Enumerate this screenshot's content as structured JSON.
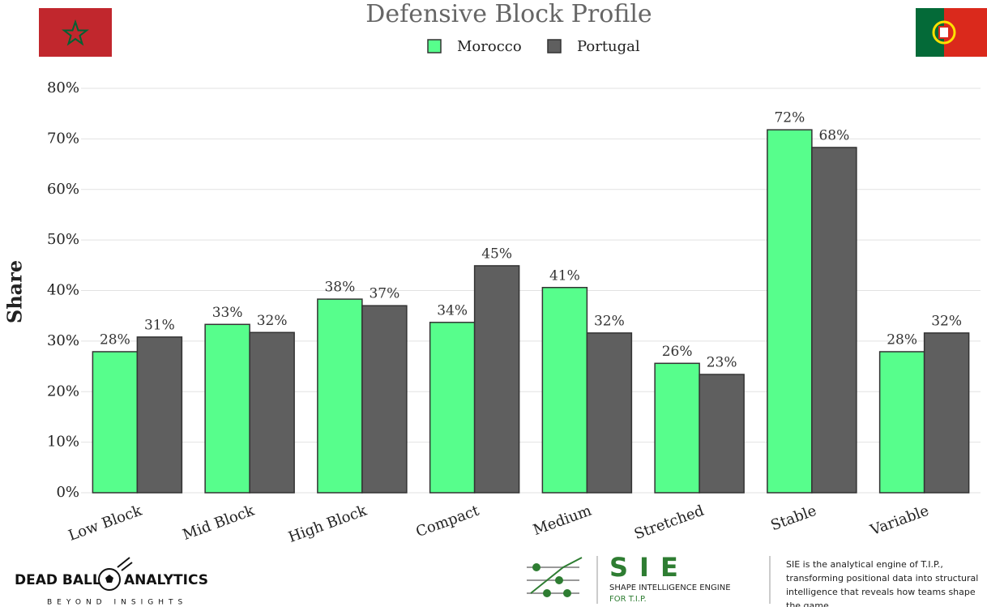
{
  "chart_data": {
    "type": "bar",
    "title": "Defensive Block Profile",
    "y_label": "Share",
    "categories": [
      "Low Block",
      "Mid Block",
      "High Block",
      "Compact",
      "Medium",
      "Stretched",
      "Stable",
      "Variable"
    ],
    "series": [
      {
        "name": "Morocco",
        "color": "#57fe8c",
        "values": [
          27.9,
          33.3,
          38.3,
          33.7,
          40.6,
          25.6,
          71.8,
          27.9
        ],
        "value_labels": [
          "28%",
          "33%",
          "38%",
          "34%",
          "41%",
          "26%",
          "72%",
          "28%"
        ]
      },
      {
        "name": "Portugal",
        "color": "#5f5f5f",
        "values": [
          30.8,
          31.7,
          37.0,
          44.9,
          31.6,
          23.4,
          68.3,
          31.6
        ],
        "value_labels": [
          "31%",
          "32%",
          "37%",
          "45%",
          "32%",
          "23%",
          "68%",
          "32%"
        ]
      }
    ],
    "ylim": [
      0,
      80
    ],
    "yticks": [
      {
        "value": 0,
        "label": "0%"
      },
      {
        "value": 10,
        "label": "10%"
      },
      {
        "value": 20,
        "label": "20%"
      },
      {
        "value": 30,
        "label": "30%"
      },
      {
        "value": 40,
        "label": "40%"
      },
      {
        "value": 50,
        "label": "50%"
      },
      {
        "value": 60,
        "label": "60%"
      },
      {
        "value": 70,
        "label": "70%"
      },
      {
        "value": 80,
        "label": "80%"
      }
    ],
    "grid": true,
    "legend": "top"
  },
  "footer": {
    "brand_left": "DEAD BALL",
    "brand_right": "ANALYTICS",
    "tagline": "BEYOND INSIGHTS",
    "sie": "SIE",
    "sie_name": "SHAPE INTELLIGENCE ENGINE",
    "sie_for": "FOR T.I.P.",
    "description": "SIE is the analytical engine of T.I.P., transforming positional data into structural intelligence that reveals how teams shape the game."
  }
}
